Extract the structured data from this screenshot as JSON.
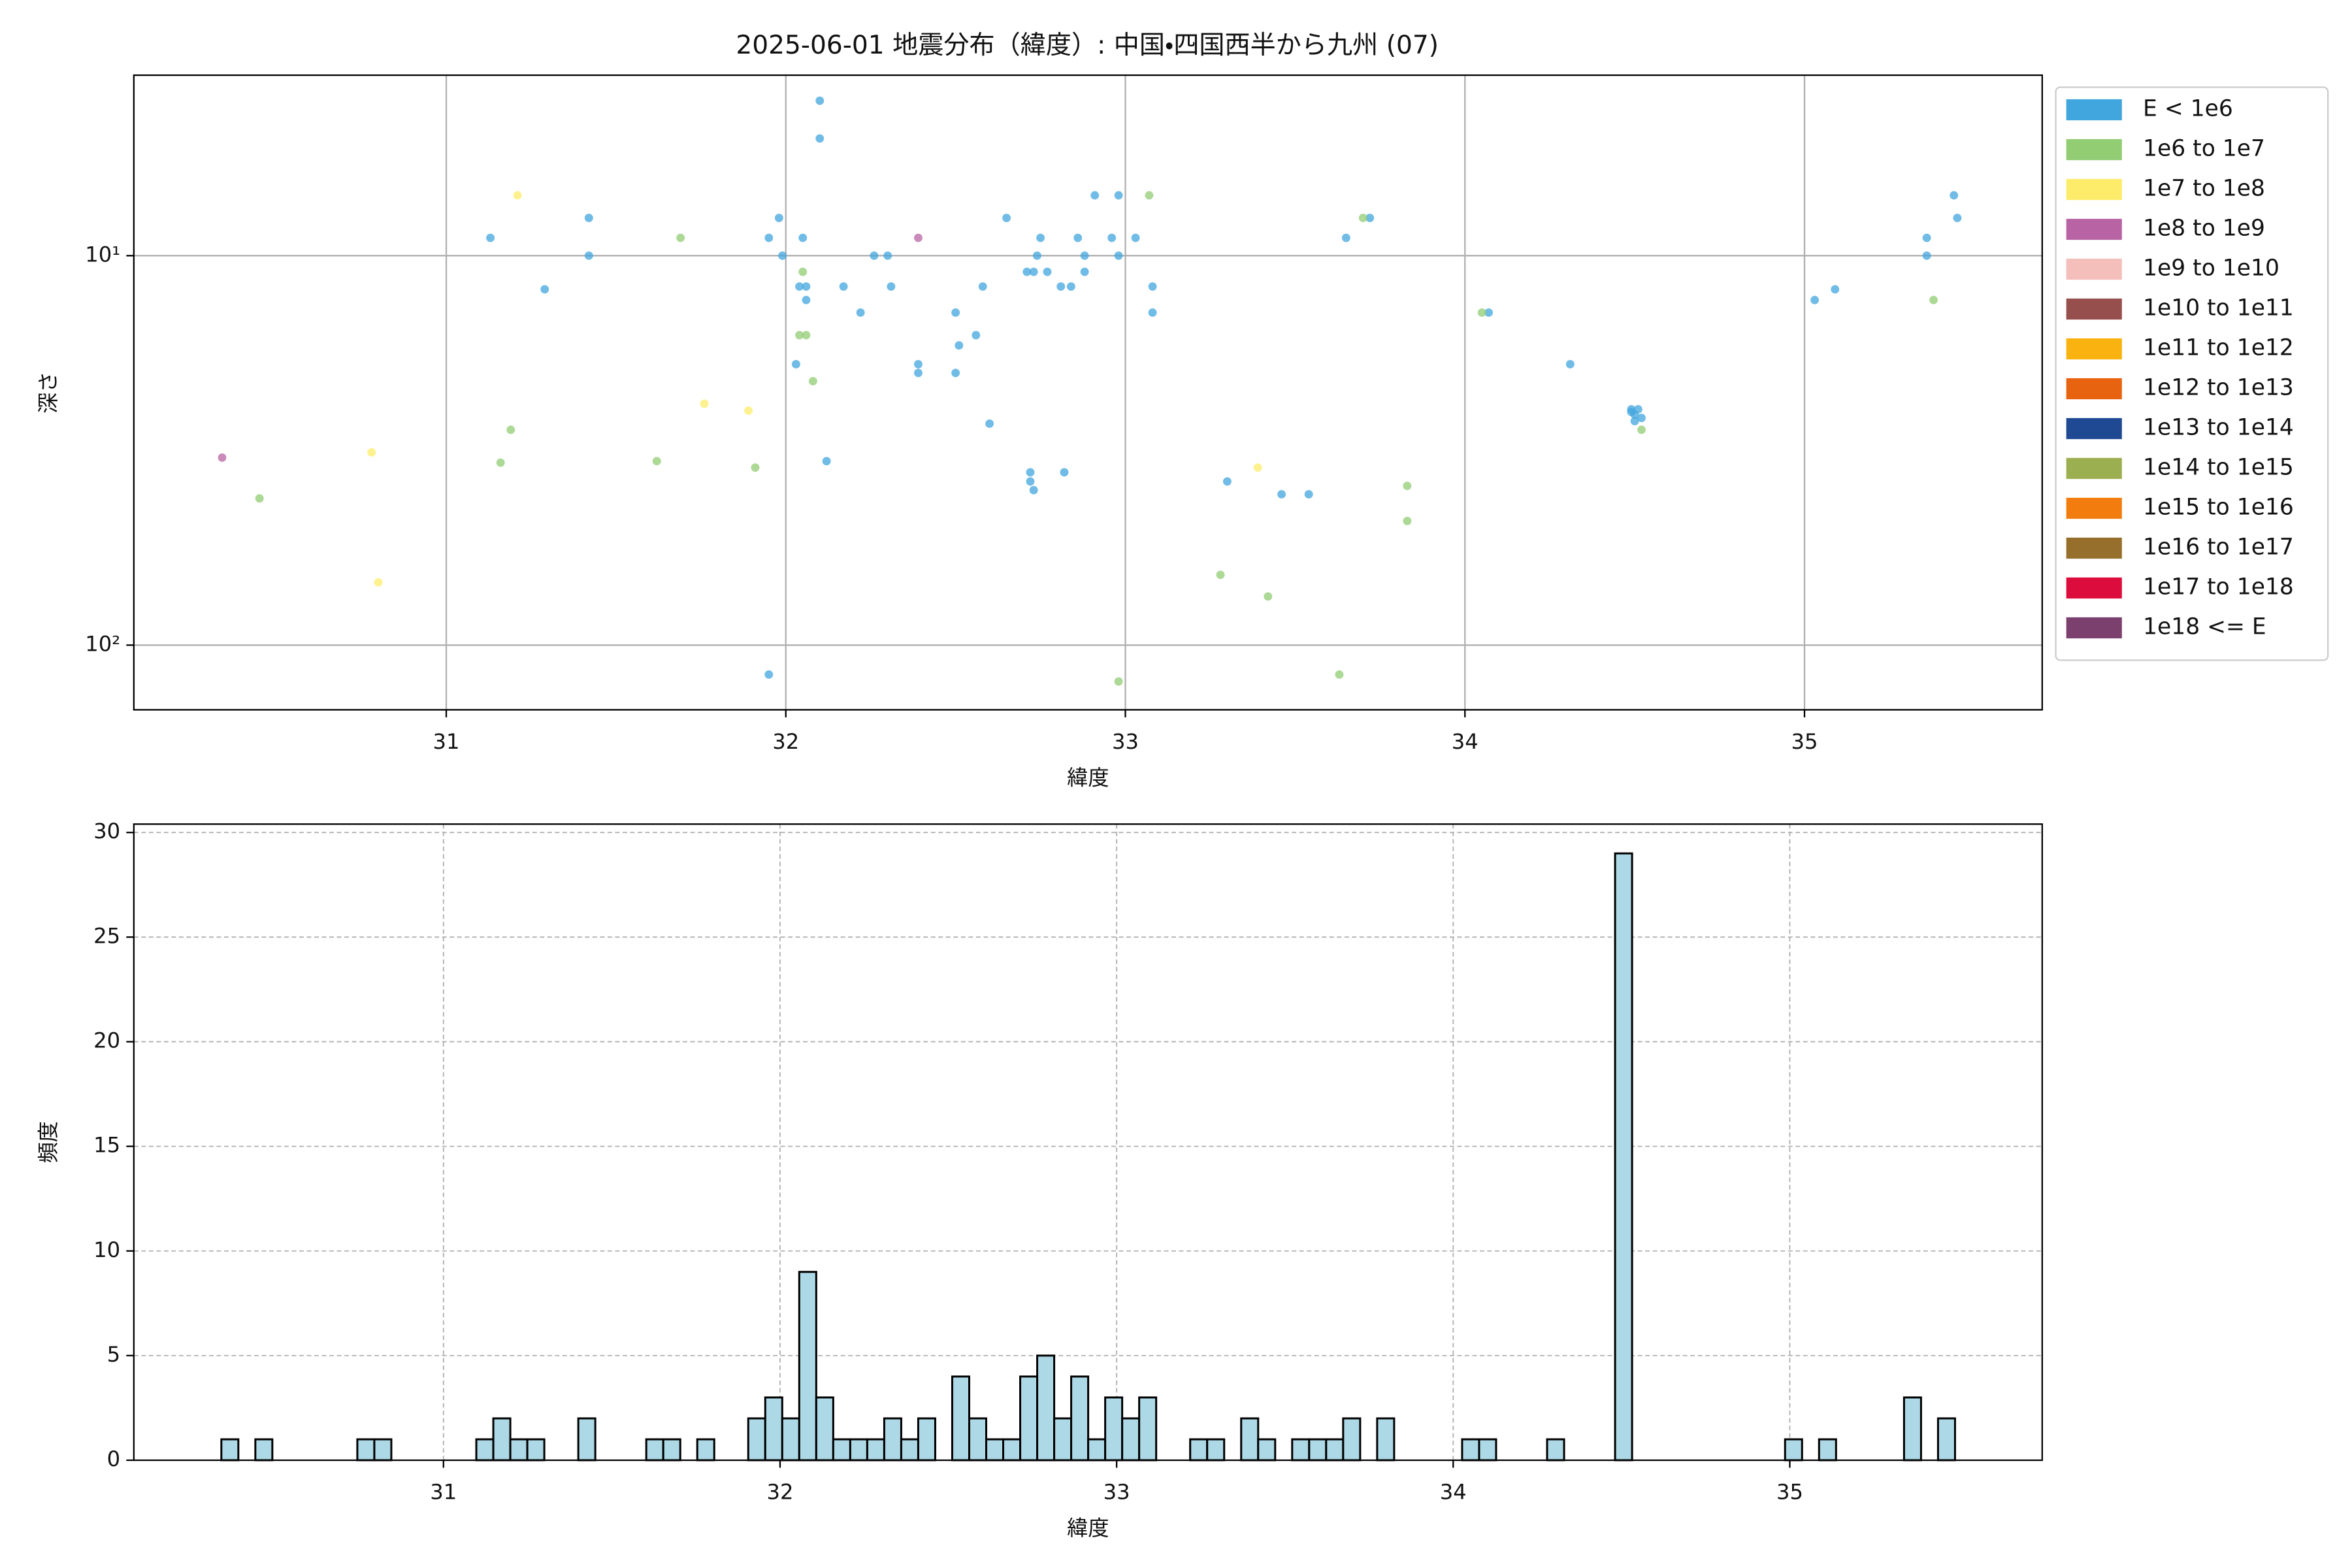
{
  "chart_data": [
    {
      "type": "scatter",
      "title": "2025-06-01 地震分布（緯度）: 中国・四国西半から九州 (07)",
      "xlabel": "緯度",
      "ylabel": "深さ",
      "xlim": [
        30.08,
        35.7
      ],
      "xticks": [
        31,
        32,
        33,
        34,
        35
      ],
      "yscale": "log",
      "ylim": [
        146.6,
        3.44
      ],
      "yticks": [
        {
          "value": 10,
          "label": "10¹"
        },
        {
          "value": 100,
          "label": "10²"
        }
      ],
      "grid": true,
      "legend": "outside right",
      "series": [
        {
          "name": "E < 1e6",
          "color": "#41a5de",
          "x": [
            31.13,
            31.42,
            31.42,
            31.29,
            32.1,
            32.1,
            31.98,
            31.95,
            31.99,
            32.05,
            32.06,
            32.04,
            32.06,
            32.17,
            32.22,
            32.26,
            32.3,
            32.31,
            32.03,
            32.39,
            32.39,
            32.5,
            32.51,
            32.56,
            32.5,
            32.58,
            32.6,
            32.65,
            32.72,
            32.72,
            32.73,
            32.71,
            32.73,
            32.75,
            32.74,
            32.77,
            32.81,
            32.82,
            32.84,
            32.86,
            32.88,
            32.88,
            32.91,
            32.96,
            32.98,
            32.98,
            33.03,
            33.08,
            33.08,
            33.3,
            33.46,
            33.54,
            33.65,
            33.72,
            34.07,
            34.31,
            34.49,
            34.5,
            34.51,
            34.52,
            34.5,
            34.49,
            31.95,
            32.12,
            35.03,
            35.09,
            35.36,
            35.36,
            35.44,
            35.45
          ],
          "values": [
            9,
            8,
            10,
            12.2,
            4,
            5,
            8,
            9,
            10,
            9,
            12,
            12,
            13,
            12,
            14,
            10,
            10,
            12,
            19,
            19,
            20,
            14,
            17,
            16,
            20,
            12,
            27,
            8,
            36,
            38,
            40,
            11,
            11,
            9,
            10,
            11,
            12,
            36,
            12,
            9,
            10,
            11,
            7,
            9,
            7,
            10,
            9,
            12,
            14,
            38,
            41,
            41,
            9,
            8,
            14,
            19,
            24.8,
            25.6,
            24.8,
            26.1,
            26.6,
            25.2,
            119,
            33.7,
            13,
            12.2,
            9,
            10,
            7,
            8
          ]
        },
        {
          "name": "1e6 to 1e7",
          "color": "#92cc73",
          "x": [
            30.45,
            31.16,
            31.19,
            31.62,
            31.69,
            31.91,
            32.04,
            32.06,
            32.05,
            32.08,
            33.07,
            32.98,
            33.28,
            33.42,
            33.63,
            33.7,
            33.83,
            33.83,
            34.05,
            34.52,
            35.38
          ],
          "values": [
            42,
            34,
            28,
            33.7,
            9,
            35,
            16,
            16,
            11,
            21,
            7,
            124,
            66,
            75,
            119,
            8,
            39,
            48,
            14,
            28,
            13
          ]
        },
        {
          "name": "1e7 to 1e8",
          "color": "#fdec6a",
          "x": [
            31.21,
            30.78,
            30.8,
            31.76,
            31.89,
            33.39
          ],
          "values": [
            7,
            32,
            69,
            24,
            25,
            35
          ]
        },
        {
          "name": "1e8 to 1e9",
          "color": "#b864a4",
          "x": [
            30.34,
            32.39
          ],
          "values": [
            33,
            9
          ]
        },
        {
          "name": "1e9 to 1e10",
          "color": "#f4bebb",
          "x": [],
          "values": []
        },
        {
          "name": "1e10 to 1e11",
          "color": "#964f4c",
          "x": [],
          "values": []
        },
        {
          "name": "1e11 to 1e12",
          "color": "#f9b20f",
          "x": [],
          "values": []
        },
        {
          "name": "1e12 to 1e13",
          "color": "#e8630f",
          "x": [],
          "values": []
        },
        {
          "name": "1e13 to 1e14",
          "color": "#1f4a93",
          "x": [],
          "values": []
        },
        {
          "name": "1e14 to 1e15",
          "color": "#9caf50",
          "x": [],
          "values": []
        },
        {
          "name": "1e15 to 1e16",
          "color": "#f27d0e",
          "x": [],
          "values": []
        },
        {
          "name": "1e16 to 1e17",
          "color": "#976f2c",
          "x": [],
          "values": []
        },
        {
          "name": "1e17 to 1e18",
          "color": "#dc0d3c",
          "x": [],
          "values": []
        },
        {
          "name": "1e18 <= E",
          "color": "#7c406e",
          "x": [],
          "values": []
        }
      ]
    },
    {
      "type": "histogram",
      "xlabel": "緯度",
      "ylabel": "頻度",
      "color": "#add8e6",
      "xlim": [
        30.08,
        35.75
      ],
      "xticks": [
        31,
        32,
        33,
        34,
        35
      ],
      "ylim": [
        0,
        30.4
      ],
      "yticks": [
        0,
        5,
        10,
        15,
        20,
        25,
        30
      ],
      "grid": true,
      "bins": [
        30.34,
        30.3905,
        30.441,
        30.4915,
        30.542,
        30.5925,
        30.643,
        30.6935,
        30.744,
        30.7945,
        30.845,
        30.8955,
        30.946,
        30.9965,
        31.047,
        31.0975,
        31.148,
        31.1985,
        31.249,
        31.2995,
        31.35,
        31.4005,
        31.451,
        31.5015,
        31.552,
        31.6025,
        31.653,
        31.7035,
        31.754,
        31.8045,
        31.855,
        31.9055,
        31.956,
        32.0065,
        32.057,
        32.1075,
        32.158,
        32.2085,
        32.259,
        32.3095,
        32.36,
        32.4105,
        32.461,
        32.5115,
        32.562,
        32.6125,
        32.663,
        32.7135,
        32.764,
        32.8145,
        32.865,
        32.9155,
        32.966,
        33.0165,
        33.067,
        33.1175,
        33.168,
        33.2185,
        33.269,
        33.3195,
        33.37,
        33.4205,
        33.471,
        33.5215,
        33.572,
        33.6225,
        33.673,
        33.7235,
        33.774,
        33.8245,
        33.875,
        33.9255,
        33.976,
        34.0265,
        34.077,
        34.1275,
        34.178,
        34.2285,
        34.279,
        34.3295,
        34.38,
        34.4305,
        34.481,
        34.5315,
        34.582,
        34.6325,
        34.683,
        34.7335,
        34.784,
        34.8345,
        34.885,
        34.9355,
        34.986,
        35.0365,
        35.087,
        35.1375,
        35.188,
        35.2385,
        35.289,
        35.3395,
        35.39,
        35.4405,
        35.491
      ],
      "values": [
        1,
        0,
        1,
        0,
        0,
        0,
        0,
        0,
        1,
        1,
        0,
        0,
        0,
        0,
        0,
        1,
        2,
        1,
        1,
        0,
        0,
        2,
        0,
        0,
        0,
        1,
        1,
        0,
        1,
        0,
        0,
        2,
        3,
        2,
        9,
        3,
        1,
        1,
        1,
        2,
        1,
        2,
        0,
        4,
        2,
        1,
        1,
        4,
        5,
        2,
        4,
        1,
        3,
        2,
        3,
        0,
        0,
        1,
        1,
        0,
        2,
        1,
        0,
        1,
        1,
        1,
        2,
        0,
        2,
        0,
        0,
        0,
        0,
        1,
        1,
        0,
        0,
        0,
        1,
        0,
        0,
        0,
        29,
        0,
        0,
        0,
        0,
        0,
        0,
        0,
        0,
        0,
        1,
        0,
        1,
        0,
        0,
        0,
        0,
        3,
        0,
        2
      ]
    }
  ]
}
